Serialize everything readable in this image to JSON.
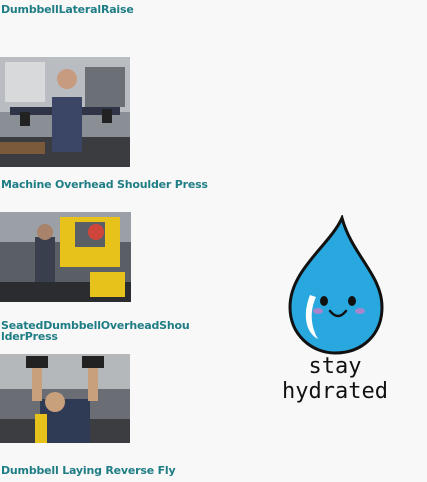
{
  "exercises": [
    {
      "title": "DumbbellLateralRaise"
    },
    {
      "title": "Machine Overhead Shoulder Press"
    },
    {
      "title_line1": "SeatedDumbbellOverheadShou",
      "title_line2": "lderPress"
    },
    {
      "title": "Dumbbell Laying Reverse Fly"
    }
  ],
  "hydration": {
    "line1": "stay",
    "line2": "hydrated"
  },
  "colors": {
    "label": "#1f7d85",
    "drop": "#29a8e0",
    "drop_outline": "#111111"
  }
}
